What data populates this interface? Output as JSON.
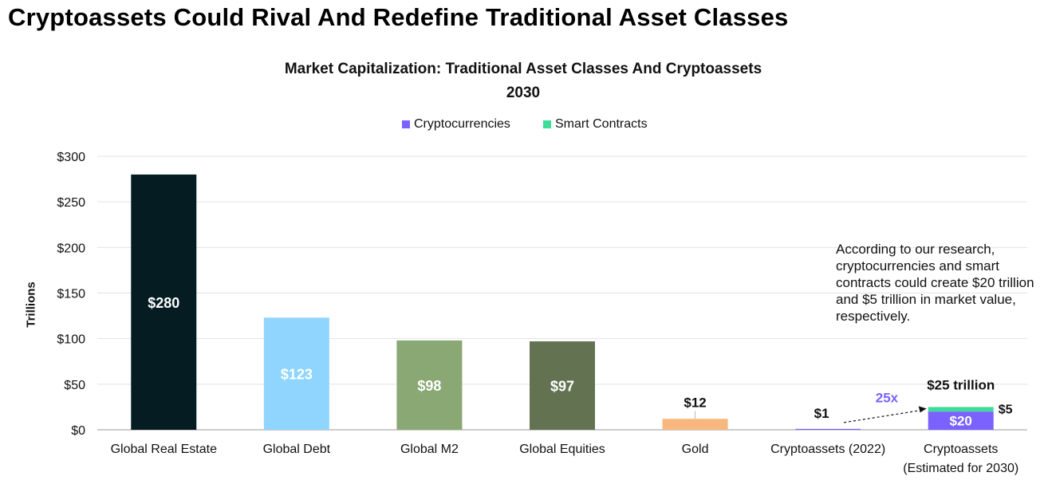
{
  "headline": "Cryptoassets Could Rival And Redefine Traditional Asset Classes",
  "legend": [
    {
      "label": "Cryptocurrencies",
      "color": "#7b61ff"
    },
    {
      "label": "Smart Contracts",
      "color": "#3ddc97"
    }
  ],
  "annotation": "According to our research, cryptocurrencies and smart contracts could create $20 trillion and $5 trillion in market value, respectively.",
  "chart_data": {
    "type": "bar",
    "title": "Market Capitalization: Traditional Asset Classes And Cryptoassets",
    "subtitle": "2030",
    "ylabel": "Trillions",
    "xlabel": "",
    "ylim": [
      0,
      300
    ],
    "yticks": [
      0,
      50,
      100,
      150,
      200,
      250,
      300
    ],
    "ytick_labels": [
      "$0",
      "$50",
      "$100",
      "$150",
      "$200",
      "$250",
      "$300"
    ],
    "grid": true,
    "legend_position": "top-center",
    "categories": [
      {
        "label": "Global Real Estate",
        "value": 280,
        "data_label": "$280",
        "color": "#041c22",
        "label_inside": true
      },
      {
        "label": "Global Debt",
        "value": 123,
        "data_label": "$123",
        "color": "#8fd5fe",
        "label_inside": true
      },
      {
        "label": "Global M2",
        "value": 98,
        "data_label": "$98",
        "color": "#8aa873",
        "label_inside": true
      },
      {
        "label": "Global Equities",
        "value": 97,
        "data_label": "$97",
        "color": "#637352",
        "label_inside": true
      },
      {
        "label": "Gold",
        "value": 12,
        "data_label": "$12",
        "color": "#f7b77e",
        "label_inside": false
      },
      {
        "label": "Cryptoassets (2022)",
        "value": 1,
        "data_label": "$1",
        "color": "#7b61ff",
        "label_inside": false
      },
      {
        "label": "Cryptoassets",
        "sublabel": "(Estimated for 2030)",
        "stack": [
          {
            "series": "Cryptocurrencies",
            "value": 20,
            "data_label": "$20",
            "color": "#7b61ff"
          },
          {
            "series": "Smart Contracts",
            "value": 5,
            "data_label": "$5",
            "color": "#3ddc97"
          }
        ],
        "total_label": "$25 trillion"
      }
    ],
    "growth_annotation": {
      "label": "25x",
      "color": "#7b61ff"
    }
  }
}
